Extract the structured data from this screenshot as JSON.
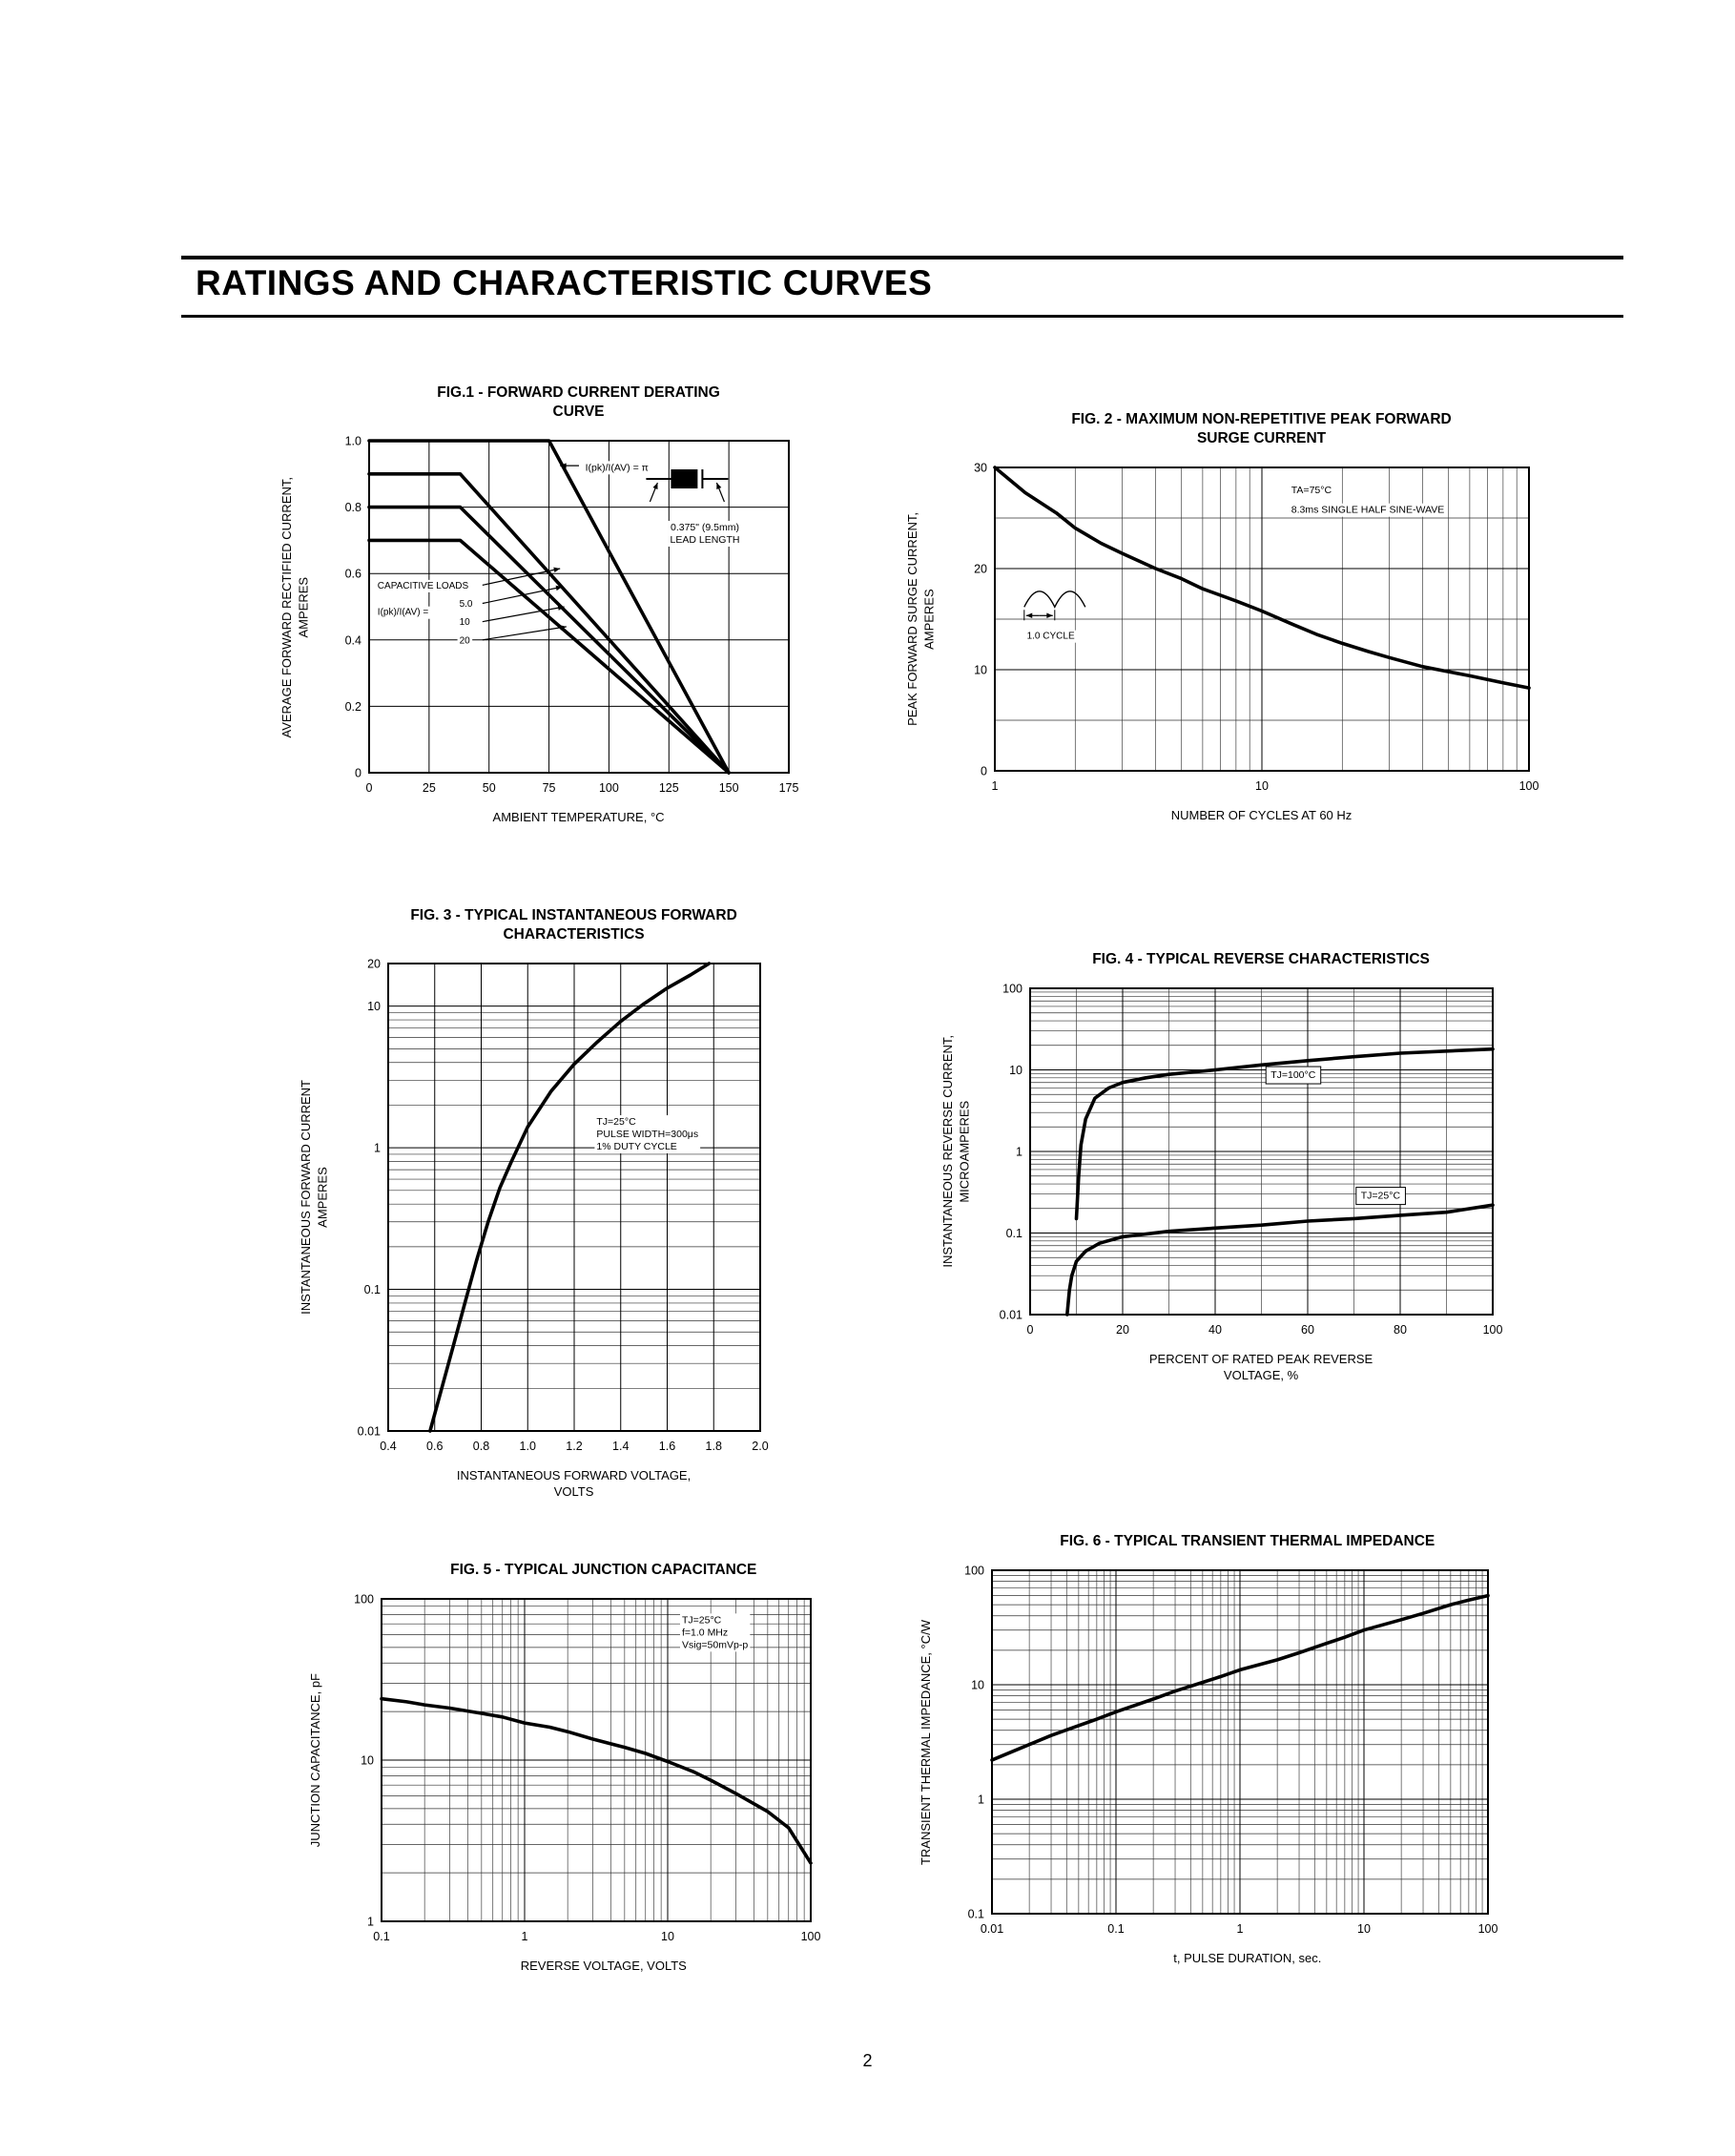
{
  "page": {
    "header_title": "RATINGS AND CHARACTERISTIC CURVES",
    "page_number": "2"
  },
  "chart_data": [
    {
      "id": "fig1",
      "type": "line",
      "title": "FIG.1 - FORWARD CURRENT DERATING\nCURVE",
      "xlabel": "AMBIENT TEMPERATURE, °C",
      "ylabel": "AVERAGE FORWARD RECTIFIED CURRENT,\nAMPERES",
      "x": {
        "scale": "linear",
        "min": 0,
        "max": 175,
        "ticks": [
          0,
          25,
          50,
          75,
          100,
          125,
          150,
          175
        ]
      },
      "y": {
        "scale": "linear",
        "min": 0,
        "max": 1,
        "ticks": [
          0,
          0.2,
          0.4,
          0.6,
          0.8,
          1
        ],
        "labels": [
          "0",
          "0.2",
          "0.4",
          "0.6",
          "0.8",
          "1.0"
        ]
      },
      "series": [
        {
          "name": "resistive-inductive-load",
          "points": [
            [
              0,
              1.0
            ],
            [
              75,
              1.0
            ],
            [
              150,
              0
            ]
          ]
        },
        {
          "name": "capacitive-load-ratio-5",
          "points": [
            [
              0,
              0.9
            ],
            [
              38,
              0.9
            ],
            [
              150,
              0
            ]
          ]
        },
        {
          "name": "capacitive-load-ratio-10",
          "points": [
            [
              0,
              0.8
            ],
            [
              38,
              0.8
            ],
            [
              150,
              0
            ]
          ]
        },
        {
          "name": "capacitive-load-ratio-20",
          "points": [
            [
              0,
              0.7
            ],
            [
              38,
              0.7
            ],
            [
              150,
              0
            ]
          ]
        }
      ],
      "annotations": [
        {
          "kind": "arrow",
          "fx1": 0.5,
          "fy1": 0.075,
          "fx2": 0.455,
          "fy2": 0.075
        },
        {
          "kind": "text",
          "text": "I(pk)/I(AV) = π",
          "fx": 0.515,
          "fy": 0.09,
          "anchor": "start",
          "size": 10.5
        },
        {
          "kind": "diode-icon",
          "fx": 0.66,
          "fy": 0.115
        },
        {
          "kind": "text",
          "text": "0.375\" (9.5mm)\nLEAD LENGTH",
          "fx": 0.8,
          "fy": 0.27,
          "anchor": "middle",
          "size": 10.5
        },
        {
          "kind": "text",
          "text": "CAPACITIVE LOADS",
          "fx": 0.02,
          "fy": 0.445,
          "anchor": "start",
          "size": 10
        },
        {
          "kind": "text",
          "text": "I(pk)/I(AV) =",
          "fx": 0.02,
          "fy": 0.525,
          "anchor": "start",
          "size": 10
        },
        {
          "kind": "text",
          "text": "5.0",
          "fx": 0.215,
          "fy": 0.5,
          "anchor": "start",
          "size": 10
        },
        {
          "kind": "text",
          "text": "10",
          "fx": 0.215,
          "fy": 0.555,
          "anchor": "start",
          "size": 10
        },
        {
          "kind": "text",
          "text": "20",
          "fx": 0.215,
          "fy": 0.61,
          "anchor": "start",
          "size": 10
        },
        {
          "kind": "arrow",
          "fx1": 0.27,
          "fy1": 0.435,
          "fx2": 0.455,
          "fy2": 0.385
        },
        {
          "kind": "arrow",
          "fx1": 0.27,
          "fy1": 0.49,
          "fx2": 0.46,
          "fy2": 0.44
        },
        {
          "kind": "arrow",
          "fx1": 0.27,
          "fy1": 0.545,
          "fx2": 0.465,
          "fy2": 0.5
        },
        {
          "kind": "arrow",
          "fx1": 0.27,
          "fy1": 0.6,
          "fx2": 0.47,
          "fy2": 0.56
        }
      ]
    },
    {
      "id": "fig2",
      "type": "line",
      "title": "FIG. 2 - MAXIMUM NON-REPETITIVE PEAK FORWARD\nSURGE CURRENT",
      "xlabel": "NUMBER OF CYCLES AT 60 Hz",
      "ylabel": "PEAK FORWARD SURGE CURRENT,\nAMPERES",
      "x": {
        "scale": "log",
        "min": 1,
        "max": 100,
        "ticks": [
          1,
          10,
          100
        ]
      },
      "y": {
        "scale": "linear",
        "min": 0,
        "max": 30,
        "ticks": [
          0,
          10,
          20,
          30
        ],
        "minor": 5
      },
      "series": [
        {
          "name": "surge-current",
          "points": [
            [
              1,
              30
            ],
            [
              1.3,
              27.5
            ],
            [
              1.7,
              25.5
            ],
            [
              2,
              24
            ],
            [
              2.5,
              22.5
            ],
            [
              3,
              21.5
            ],
            [
              4,
              20
            ],
            [
              5,
              19
            ],
            [
              6,
              18
            ],
            [
              8,
              16.8
            ],
            [
              10,
              15.8
            ],
            [
              13,
              14.5
            ],
            [
              16,
              13.5
            ],
            [
              20,
              12.6
            ],
            [
              25,
              11.8
            ],
            [
              30,
              11.2
            ],
            [
              40,
              10.3
            ],
            [
              50,
              9.8
            ],
            [
              60,
              9.4
            ],
            [
              80,
              8.7
            ],
            [
              100,
              8.2
            ]
          ]
        }
      ],
      "annotations": [
        {
          "kind": "text",
          "text": "TA=75°C",
          "fx": 0.555,
          "fy": 0.085,
          "anchor": "start",
          "size": 10.5
        },
        {
          "kind": "text",
          "text": "8.3ms SINGLE HALF SINE-WAVE",
          "fx": 0.555,
          "fy": 0.15,
          "anchor": "start",
          "size": 10.5
        },
        {
          "kind": "sine-icon",
          "fx": 0.055,
          "fy": 0.46
        },
        {
          "kind": "text",
          "text": "1.0 CYCLE",
          "fx": 0.06,
          "fy": 0.565,
          "anchor": "start",
          "size": 10
        }
      ]
    },
    {
      "id": "fig3",
      "type": "line",
      "title": "FIG. 3 - TYPICAL INSTANTANEOUS FORWARD\nCHARACTERISTICS",
      "xlabel": "INSTANTANEOUS FORWARD VOLTAGE,\nVOLTS",
      "ylabel": "INSTANTANEOUS FORWARD CURRENT\nAMPERES",
      "x": {
        "scale": "linear",
        "min": 0.4,
        "max": 2.0,
        "ticks": [
          0.4,
          0.6,
          0.8,
          1.0,
          1.2,
          1.4,
          1.6,
          1.8,
          2.0
        ],
        "labels": [
          "0.4",
          "0.6",
          "0.8",
          "1.0",
          "1.2",
          "1.4",
          "1.6",
          "1.8",
          "2.0"
        ]
      },
      "y": {
        "scale": "log",
        "min": 0.01,
        "max": 20,
        "ticks": [
          0.01,
          0.1,
          1,
          10,
          20
        ],
        "labels": [
          "0.01",
          "0.1",
          "1",
          "10",
          "20"
        ]
      },
      "series": [
        {
          "name": "forward-characteristic",
          "points": [
            [
              0.58,
              0.01
            ],
            [
              0.63,
              0.02
            ],
            [
              0.68,
              0.04
            ],
            [
              0.73,
              0.08
            ],
            [
              0.78,
              0.16
            ],
            [
              0.83,
              0.3
            ],
            [
              0.88,
              0.52
            ],
            [
              0.93,
              0.8
            ],
            [
              1.0,
              1.4
            ],
            [
              1.1,
              2.5
            ],
            [
              1.2,
              3.9
            ],
            [
              1.3,
              5.6
            ],
            [
              1.4,
              7.8
            ],
            [
              1.5,
              10.4
            ],
            [
              1.6,
              13.4
            ],
            [
              1.7,
              16.6
            ],
            [
              1.78,
              20
            ]
          ]
        }
      ],
      "annotations": [
        {
          "kind": "text",
          "text": "TJ=25°C\nPULSE WIDTH=300μs\n1% DUTY CYCLE",
          "fx": 0.56,
          "fy": 0.345,
          "anchor": "start",
          "size": 10.5
        }
      ]
    },
    {
      "id": "fig4",
      "type": "line",
      "title": "FIG. 4 - TYPICAL REVERSE CHARACTERISTICS",
      "xlabel": "PERCENT OF RATED PEAK REVERSE\nVOLTAGE, %",
      "ylabel": "INSTANTANEOUS REVERSE CURRENT,\nMICROAMPERES",
      "x": {
        "scale": "linear",
        "min": 0,
        "max": 100,
        "ticks": [
          0,
          20,
          40,
          60,
          80,
          100
        ],
        "minor": 10
      },
      "y": {
        "scale": "log",
        "min": 0.01,
        "max": 100,
        "ticks": [
          0.01,
          0.1,
          1,
          10,
          100
        ],
        "labels": [
          "0.01",
          "0.1",
          "1",
          "10",
          "100"
        ]
      },
      "series": [
        {
          "name": "reverse-current-tj-100c",
          "points": [
            [
              10,
              0.15
            ],
            [
              10.5,
              0.5
            ],
            [
              11,
              1.2
            ],
            [
              12,
              2.5
            ],
            [
              14,
              4.5
            ],
            [
              17,
              6
            ],
            [
              20,
              7
            ],
            [
              25,
              8
            ],
            [
              30,
              8.8
            ],
            [
              40,
              10
            ],
            [
              50,
              11.5
            ],
            [
              60,
              13
            ],
            [
              70,
              14.5
            ],
            [
              80,
              16
            ],
            [
              90,
              17
            ],
            [
              100,
              18
            ]
          ]
        },
        {
          "name": "reverse-current-tj-25c",
          "points": [
            [
              8,
              0.01
            ],
            [
              8.5,
              0.02
            ],
            [
              9,
              0.03
            ],
            [
              10,
              0.045
            ],
            [
              12,
              0.06
            ],
            [
              15,
              0.075
            ],
            [
              20,
              0.09
            ],
            [
              30,
              0.105
            ],
            [
              40,
              0.115
            ],
            [
              50,
              0.125
            ],
            [
              60,
              0.14
            ],
            [
              70,
              0.15
            ],
            [
              80,
              0.165
            ],
            [
              90,
              0.18
            ],
            [
              100,
              0.22
            ]
          ]
        }
      ],
      "annotations": [
        {
          "kind": "text",
          "text": "TJ=100°C",
          "fx": 0.52,
          "fy": 0.275,
          "anchor": "start",
          "size": 10.5,
          "boxed": true
        },
        {
          "kind": "text",
          "text": "TJ=25°C",
          "fx": 0.715,
          "fy": 0.645,
          "anchor": "start",
          "size": 10.5,
          "boxed": true
        }
      ]
    },
    {
      "id": "fig5",
      "type": "line",
      "title": "FIG. 5 - TYPICAL JUNCTION CAPACITANCE",
      "xlabel": "REVERSE VOLTAGE, VOLTS",
      "ylabel": "JUNCTION CAPACITANCE, pF",
      "x": {
        "scale": "log",
        "min": 0.1,
        "max": 100,
        "ticks": [
          0.1,
          1,
          10,
          100
        ],
        "labels": [
          "0.1",
          "1",
          "10",
          "100"
        ]
      },
      "y": {
        "scale": "log",
        "min": 1,
        "max": 100,
        "ticks": [
          1,
          10,
          100
        ],
        "labels": [
          "1",
          "10",
          "100"
        ]
      },
      "series": [
        {
          "name": "junction-capacitance",
          "points": [
            [
              0.1,
              24
            ],
            [
              0.15,
              23
            ],
            [
              0.2,
              22
            ],
            [
              0.3,
              21
            ],
            [
              0.5,
              19.5
            ],
            [
              0.7,
              18.5
            ],
            [
              1,
              17
            ],
            [
              1.5,
              16
            ],
            [
              2,
              15
            ],
            [
              3,
              13.5
            ],
            [
              5,
              12
            ],
            [
              7,
              11
            ],
            [
              10,
              9.8
            ],
            [
              15,
              8.5
            ],
            [
              20,
              7.5
            ],
            [
              30,
              6.2
            ],
            [
              50,
              4.8
            ],
            [
              70,
              3.8
            ],
            [
              100,
              2.3
            ]
          ]
        }
      ],
      "annotations": [
        {
          "kind": "text",
          "text": "TJ=25°C\nf=1.0 MHz\nVsig=50mVp-p",
          "fx": 0.7,
          "fy": 0.075,
          "anchor": "start",
          "size": 10.5
        }
      ]
    },
    {
      "id": "fig6",
      "type": "line",
      "title": "FIG. 6 - TYPICAL TRANSIENT THERMAL IMPEDANCE",
      "xlabel": "t, PULSE DURATION, sec.",
      "ylabel": "TRANSIENT THERMAL IMPEDANCE, °C/W",
      "x": {
        "scale": "log",
        "min": 0.01,
        "max": 100,
        "ticks": [
          0.01,
          0.1,
          1,
          10,
          100
        ],
        "labels": [
          "0.01",
          "0.1",
          "1",
          "10",
          "100"
        ]
      },
      "y": {
        "scale": "log",
        "min": 0.1,
        "max": 100,
        "ticks": [
          0.1,
          1,
          10,
          100
        ],
        "labels": [
          "0.1",
          "1",
          "10",
          "100"
        ]
      },
      "series": [
        {
          "name": "transient-thermal-impedance",
          "points": [
            [
              0.01,
              2.2
            ],
            [
              0.02,
              3.0
            ],
            [
              0.03,
              3.6
            ],
            [
              0.05,
              4.4
            ],
            [
              0.07,
              5.0
            ],
            [
              0.1,
              5.8
            ],
            [
              0.2,
              7.5
            ],
            [
              0.3,
              8.8
            ],
            [
              0.5,
              10.5
            ],
            [
              0.7,
              11.8
            ],
            [
              1,
              13.5
            ],
            [
              2,
              16.5
            ],
            [
              3,
              19
            ],
            [
              5,
              23
            ],
            [
              7,
              26
            ],
            [
              10,
              30
            ],
            [
              20,
              37
            ],
            [
              30,
              42
            ],
            [
              50,
              50
            ],
            [
              70,
              55
            ],
            [
              100,
              60
            ]
          ]
        }
      ],
      "annotations": []
    }
  ]
}
